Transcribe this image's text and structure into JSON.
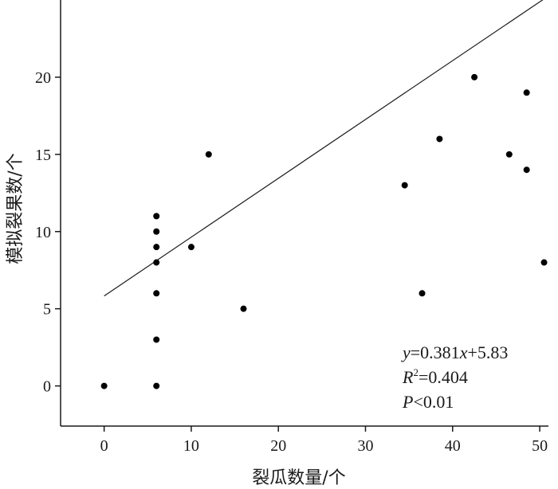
{
  "chart_data": {
    "type": "scatter",
    "xlabel": "裂瓜数量/个",
    "ylabel": "模拟裂果数/个",
    "xlim": [
      -5,
      51
    ],
    "ylim": [
      -2.6,
      25
    ],
    "xticks": [
      0,
      10,
      20,
      30,
      40,
      50
    ],
    "yticks": [
      0,
      5,
      10,
      15,
      20
    ],
    "grid": false,
    "points": [
      {
        "x": 0,
        "y": 0
      },
      {
        "x": 6,
        "y": 0
      },
      {
        "x": 6,
        "y": 3
      },
      {
        "x": 6,
        "y": 6
      },
      {
        "x": 6,
        "y": 8
      },
      {
        "x": 6,
        "y": 9
      },
      {
        "x": 6,
        "y": 10
      },
      {
        "x": 6,
        "y": 11
      },
      {
        "x": 10,
        "y": 9
      },
      {
        "x": 12,
        "y": 15
      },
      {
        "x": 16,
        "y": 5
      },
      {
        "x": 34.5,
        "y": 13
      },
      {
        "x": 36.5,
        "y": 6
      },
      {
        "x": 38.5,
        "y": 16
      },
      {
        "x": 42.5,
        "y": 20
      },
      {
        "x": 46.5,
        "y": 15
      },
      {
        "x": 48.5,
        "y": 19
      },
      {
        "x": 48.5,
        "y": 14
      },
      {
        "x": 50.5,
        "y": 8
      }
    ],
    "fit": {
      "slope": 0.381,
      "intercept": 5.83,
      "x_range": [
        0,
        50.5
      ]
    },
    "annotations": {
      "equation": {
        "y": "y",
        "eq1": "=0.381",
        "x": "x",
        "eq2": "+5.83"
      },
      "r2": {
        "R": "R",
        "sup": "2",
        "value": "=0.404"
      },
      "p": {
        "P": "P",
        "value": "<0.01"
      }
    }
  }
}
